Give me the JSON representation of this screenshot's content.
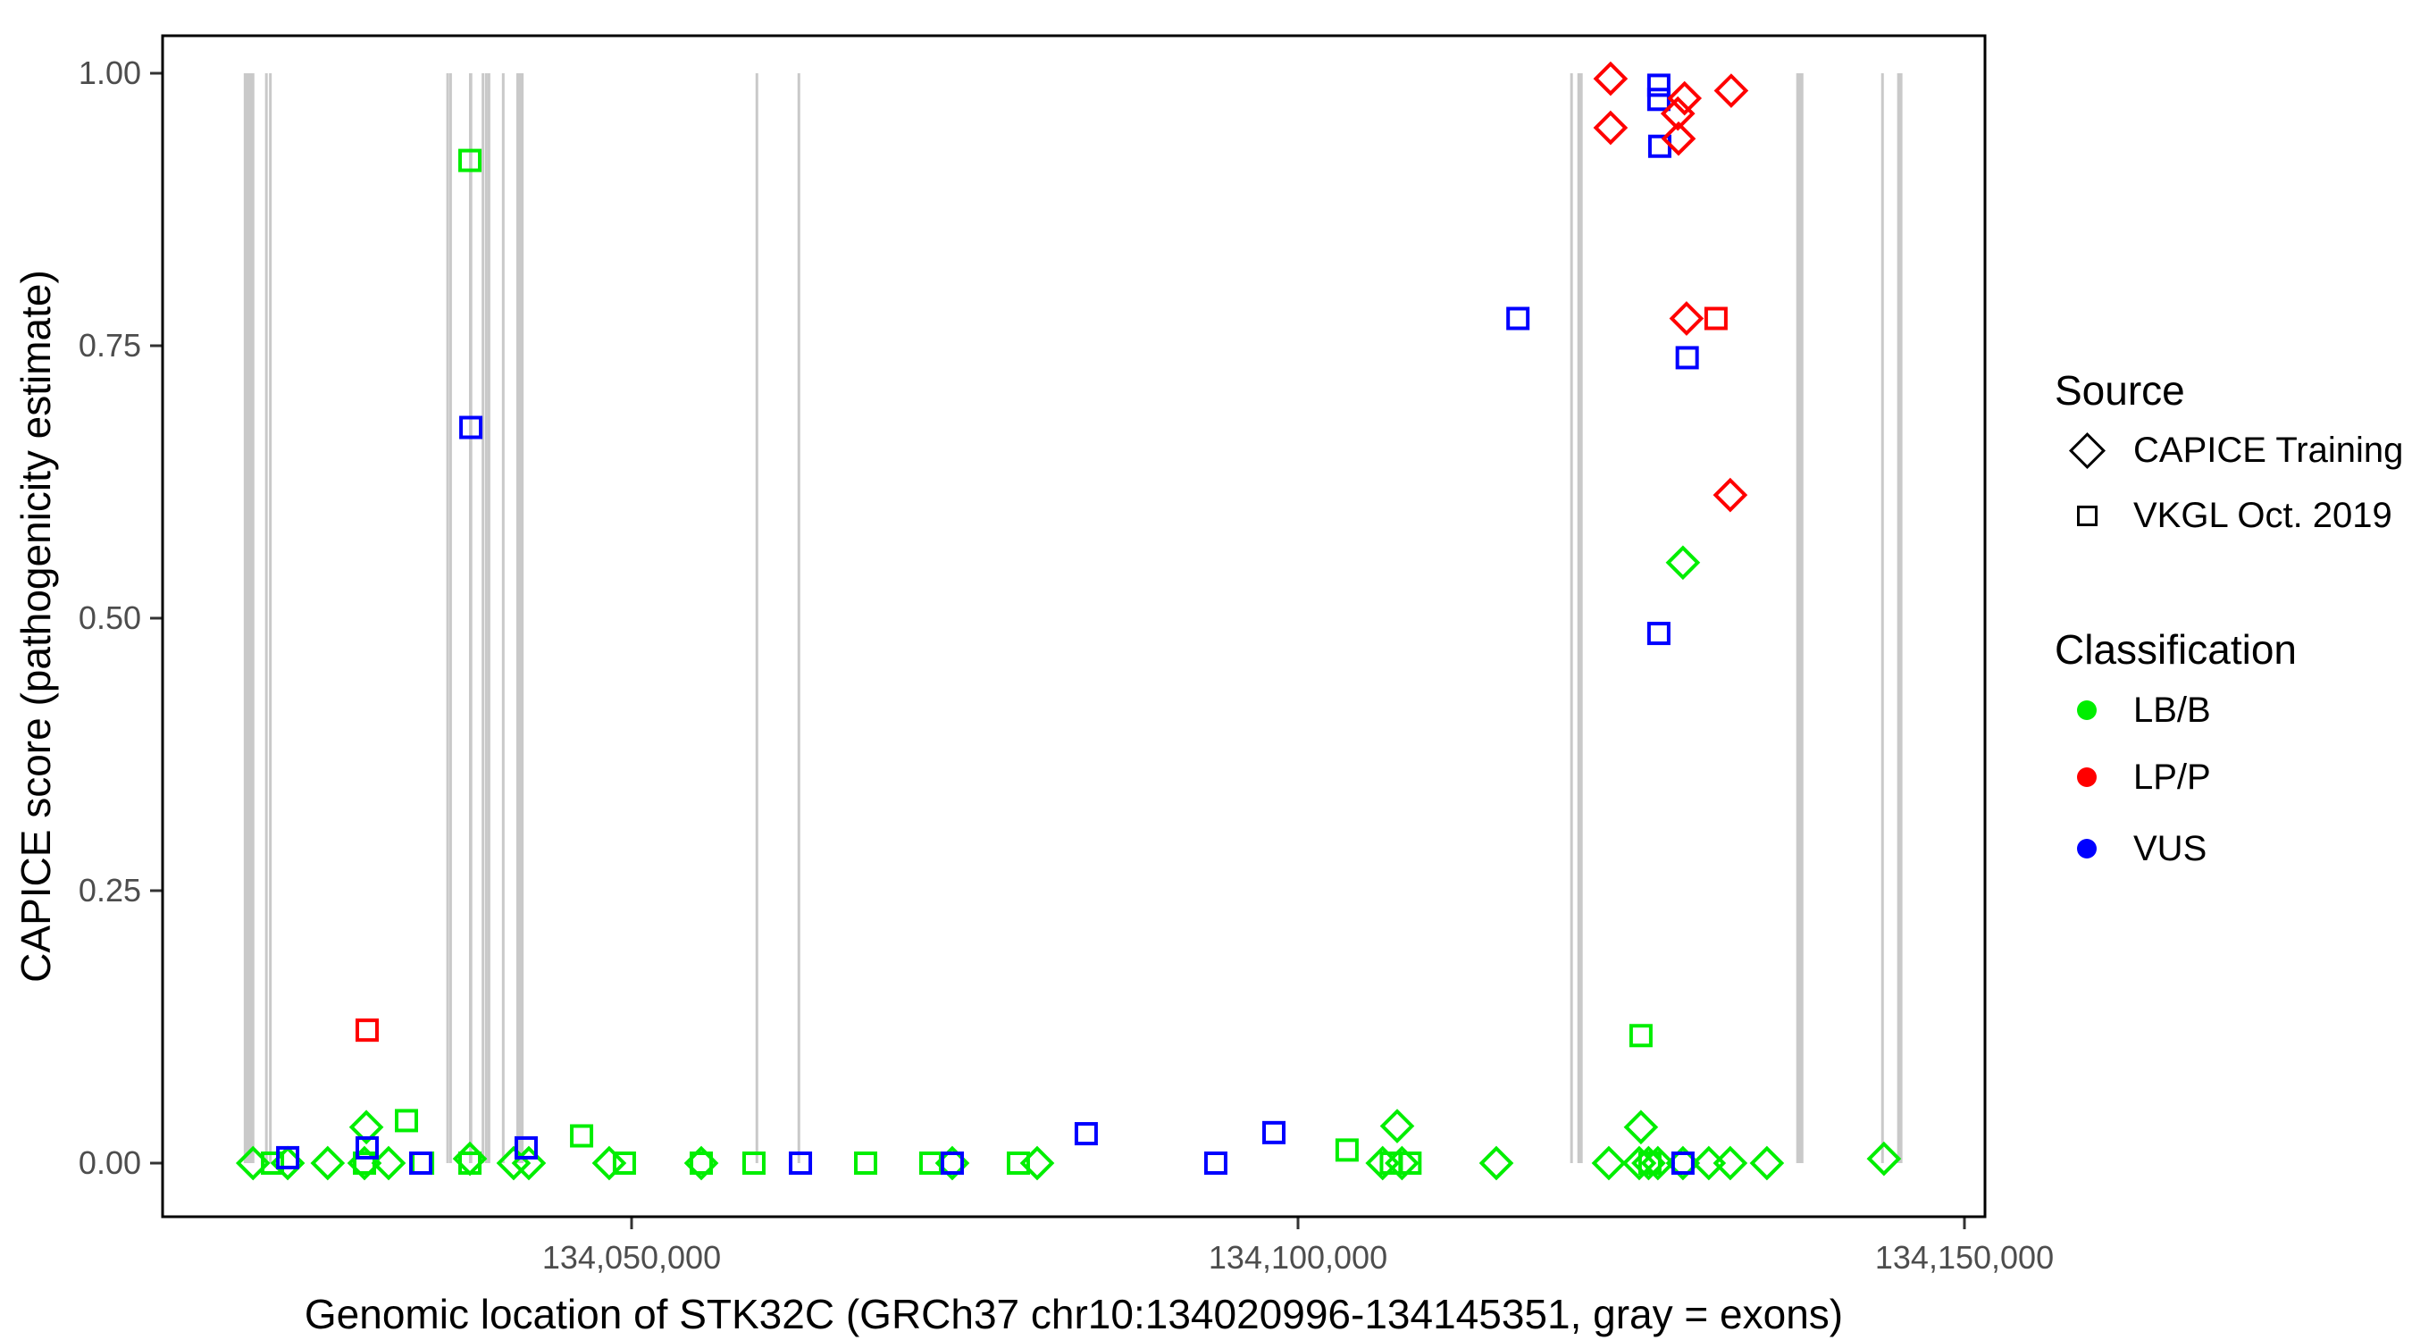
{
  "chart_data": {
    "type": "scatter",
    "title": "",
    "xlabel": "Genomic location of STK32C (GRCh37 chr10:134020996-134145351, gray = exons)",
    "ylabel": "CAPICE score (pathogenicity estimate)",
    "x_range": [
      134014800,
      134151550
    ],
    "y_range": [
      -0.05,
      1.035
    ],
    "grid": false,
    "x_ticks": [
      {
        "value": 134050000,
        "label": "134,050,000"
      },
      {
        "value": 134100000,
        "label": "134,100,000"
      },
      {
        "value": 134150000,
        "label": "134,150,000"
      }
    ],
    "y_ticks": [
      {
        "value": 0.0,
        "label": "0.00"
      },
      {
        "value": 0.25,
        "label": "0.25"
      },
      {
        "value": 0.5,
        "label": "0.50"
      },
      {
        "value": 0.75,
        "label": "0.75"
      },
      {
        "value": 1.0,
        "label": "1.00"
      }
    ],
    "colors": {
      "LB/B": "#00EE00",
      "LP/P": "#FF0000",
      "VUS": "#0000FF",
      "exon": "#C9C9C9",
      "axis_text": "#4D4D4D",
      "axis_line": "#000000"
    },
    "exons": [
      {
        "start": 134020900,
        "end": 134021700
      },
      {
        "start": 134022500,
        "end": 134022700
      },
      {
        "start": 134022800,
        "end": 134023000
      },
      {
        "start": 134036100,
        "end": 134036300
      },
      {
        "start": 134036320,
        "end": 134036520
      },
      {
        "start": 134037800,
        "end": 134038050
      },
      {
        "start": 134038750,
        "end": 134038900
      },
      {
        "start": 134039000,
        "end": 134039150
      },
      {
        "start": 134039200,
        "end": 134039350
      },
      {
        "start": 134040270,
        "end": 134040420
      },
      {
        "start": 134041350,
        "end": 134041900
      },
      {
        "start": 134059300,
        "end": 134059450
      },
      {
        "start": 134062450,
        "end": 134062600
      },
      {
        "start": 134120420,
        "end": 134120570
      },
      {
        "start": 134120960,
        "end": 134121360
      },
      {
        "start": 134137380,
        "end": 134137920
      },
      {
        "start": 134143750,
        "end": 134143950
      },
      {
        "start": 134144950,
        "end": 134145350
      }
    ],
    "points": [
      {
        "pos": 134037870,
        "score": 0.92,
        "classification": "LB/B",
        "source": "VKGL Oct. 2019"
      },
      {
        "pos": 134125730,
        "score": 0.117,
        "classification": "LB/B",
        "source": "VKGL Oct. 2019"
      },
      {
        "pos": 134023060,
        "score": 0.0,
        "classification": "LB/B",
        "source": "VKGL Oct. 2019"
      },
      {
        "pos": 134029960,
        "score": 0.0,
        "classification": "LB/B",
        "source": "VKGL Oct. 2019"
      },
      {
        "pos": 134033110,
        "score": 0.039,
        "classification": "LB/B",
        "source": "VKGL Oct. 2019"
      },
      {
        "pos": 134034320,
        "score": 0.0,
        "classification": "LB/B",
        "source": "VKGL Oct. 2019"
      },
      {
        "pos": 134037870,
        "score": 0.0,
        "classification": "LB/B",
        "source": "VKGL Oct. 2019"
      },
      {
        "pos": 134046250,
        "score": 0.025,
        "classification": "LB/B",
        "source": "VKGL Oct. 2019"
      },
      {
        "pos": 134049460,
        "score": 0.0,
        "classification": "LB/B",
        "source": "VKGL Oct. 2019"
      },
      {
        "pos": 134055230,
        "score": 0.0,
        "classification": "LB/B",
        "source": "VKGL Oct. 2019"
      },
      {
        "pos": 134059180,
        "score": 0.0,
        "classification": "LB/B",
        "source": "VKGL Oct. 2019"
      },
      {
        "pos": 134067560,
        "score": 0.0,
        "classification": "LB/B",
        "source": "VKGL Oct. 2019"
      },
      {
        "pos": 134072450,
        "score": 0.0,
        "classification": "LB/B",
        "source": "VKGL Oct. 2019"
      },
      {
        "pos": 134079020,
        "score": 0.0,
        "classification": "LB/B",
        "source": "VKGL Oct. 2019"
      },
      {
        "pos": 134103680,
        "score": 0.012,
        "classification": "LB/B",
        "source": "VKGL Oct. 2019"
      },
      {
        "pos": 134107000,
        "score": 0.0,
        "classification": "LB/B",
        "source": "VKGL Oct. 2019"
      },
      {
        "pos": 134108400,
        "score": 0.0,
        "classification": "LB/B",
        "source": "VKGL Oct. 2019"
      },
      {
        "pos": 134126400,
        "score": 0.0,
        "classification": "LB/B",
        "source": "VKGL Oct. 2019"
      },
      {
        "pos": 134021600,
        "score": 0.0,
        "classification": "LB/B",
        "source": "CAPICE Training"
      },
      {
        "pos": 134024200,
        "score": 0.0,
        "classification": "LB/B",
        "source": "CAPICE Training"
      },
      {
        "pos": 134027200,
        "score": 0.0,
        "classification": "LB/B",
        "source": "CAPICE Training"
      },
      {
        "pos": 134030100,
        "score": 0.033,
        "classification": "LB/B",
        "source": "CAPICE Training"
      },
      {
        "pos": 134029960,
        "score": 0.0,
        "classification": "LB/B",
        "source": "CAPICE Training"
      },
      {
        "pos": 134031770,
        "score": 0.0,
        "classification": "LB/B",
        "source": "CAPICE Training"
      },
      {
        "pos": 134037870,
        "score": 0.004,
        "classification": "LB/B",
        "source": "CAPICE Training"
      },
      {
        "pos": 134041150,
        "score": 0.0,
        "classification": "LB/B",
        "source": "CAPICE Training"
      },
      {
        "pos": 134042290,
        "score": 0.0,
        "classification": "LB/B",
        "source": "CAPICE Training"
      },
      {
        "pos": 134048320,
        "score": 0.0,
        "classification": "LB/B",
        "source": "CAPICE Training"
      },
      {
        "pos": 134055230,
        "score": 0.0,
        "classification": "LB/B",
        "source": "CAPICE Training"
      },
      {
        "pos": 134074060,
        "score": 0.0,
        "classification": "LB/B",
        "source": "CAPICE Training"
      },
      {
        "pos": 134080430,
        "score": 0.0,
        "classification": "LB/B",
        "source": "CAPICE Training"
      },
      {
        "pos": 134107440,
        "score": 0.034,
        "classification": "LB/B",
        "source": "CAPICE Training"
      },
      {
        "pos": 134106350,
        "score": 0.0,
        "classification": "LB/B",
        "source": "CAPICE Training"
      },
      {
        "pos": 134107800,
        "score": 0.0,
        "classification": "LB/B",
        "source": "CAPICE Training"
      },
      {
        "pos": 134114880,
        "score": 0.0,
        "classification": "LB/B",
        "source": "CAPICE Training"
      },
      {
        "pos": 134123320,
        "score": 0.0,
        "classification": "LB/B",
        "source": "CAPICE Training"
      },
      {
        "pos": 134125730,
        "score": 0.033,
        "classification": "LB/B",
        "source": "CAPICE Training"
      },
      {
        "pos": 134125600,
        "score": 0.0,
        "classification": "LB/B",
        "source": "CAPICE Training"
      },
      {
        "pos": 134126300,
        "score": 0.0,
        "classification": "LB/B",
        "source": "CAPICE Training"
      },
      {
        "pos": 134127000,
        "score": 0.0,
        "classification": "LB/B",
        "source": "CAPICE Training"
      },
      {
        "pos": 134128880,
        "score": 0.0,
        "classification": "LB/B",
        "source": "CAPICE Training"
      },
      {
        "pos": 134130820,
        "score": 0.0,
        "classification": "LB/B",
        "source": "CAPICE Training"
      },
      {
        "pos": 134132430,
        "score": 0.0,
        "classification": "LB/B",
        "source": "CAPICE Training"
      },
      {
        "pos": 134135180,
        "score": 0.0,
        "classification": "LB/B",
        "source": "CAPICE Training"
      },
      {
        "pos": 134143960,
        "score": 0.004,
        "classification": "LB/B",
        "source": "CAPICE Training"
      },
      {
        "pos": 134128880,
        "score": 0.551,
        "classification": "LB/B",
        "source": "CAPICE Training"
      },
      {
        "pos": 134127070,
        "score": 0.989,
        "classification": "VUS",
        "source": "VKGL Oct. 2019"
      },
      {
        "pos": 134127070,
        "score": 0.976,
        "classification": "VUS",
        "source": "VKGL Oct. 2019"
      },
      {
        "pos": 134127140,
        "score": 0.933,
        "classification": "VUS",
        "source": "VKGL Oct. 2019"
      },
      {
        "pos": 134116500,
        "score": 0.775,
        "classification": "VUS",
        "source": "VKGL Oct. 2019"
      },
      {
        "pos": 134129200,
        "score": 0.739,
        "classification": "VUS",
        "source": "VKGL Oct. 2019"
      },
      {
        "pos": 134127070,
        "score": 0.486,
        "classification": "VUS",
        "source": "VKGL Oct. 2019"
      },
      {
        "pos": 134037940,
        "score": 0.675,
        "classification": "VUS",
        "source": "VKGL Oct. 2019"
      },
      {
        "pos": 134024200,
        "score": 0.005,
        "classification": "VUS",
        "source": "VKGL Oct. 2019"
      },
      {
        "pos": 134030160,
        "score": 0.014,
        "classification": "VUS",
        "source": "VKGL Oct. 2019"
      },
      {
        "pos": 134034180,
        "score": 0.0,
        "classification": "VUS",
        "source": "VKGL Oct. 2019"
      },
      {
        "pos": 134042090,
        "score": 0.014,
        "classification": "VUS",
        "source": "VKGL Oct. 2019"
      },
      {
        "pos": 134062670,
        "score": 0.0,
        "classification": "VUS",
        "source": "VKGL Oct. 2019"
      },
      {
        "pos": 134074060,
        "score": 0.0,
        "classification": "VUS",
        "source": "VKGL Oct. 2019"
      },
      {
        "pos": 134084110,
        "score": 0.027,
        "classification": "VUS",
        "source": "VKGL Oct. 2019"
      },
      {
        "pos": 134093830,
        "score": 0.0,
        "classification": "VUS",
        "source": "VKGL Oct. 2019"
      },
      {
        "pos": 134098190,
        "score": 0.028,
        "classification": "VUS",
        "source": "VKGL Oct. 2019"
      },
      {
        "pos": 134128880,
        "score": 0.0,
        "classification": "VUS",
        "source": "VKGL Oct. 2019"
      },
      {
        "pos": 134123450,
        "score": 0.995,
        "classification": "LP/P",
        "source": "CAPICE Training"
      },
      {
        "pos": 134123450,
        "score": 0.95,
        "classification": "LP/P",
        "source": "CAPICE Training"
      },
      {
        "pos": 134129000,
        "score": 0.977,
        "classification": "LP/P",
        "source": "CAPICE Training"
      },
      {
        "pos": 134128500,
        "score": 0.963,
        "classification": "LP/P",
        "source": "CAPICE Training"
      },
      {
        "pos": 134128550,
        "score": 0.94,
        "classification": "LP/P",
        "source": "CAPICE Training"
      },
      {
        "pos": 134132500,
        "score": 0.984,
        "classification": "LP/P",
        "source": "CAPICE Training"
      },
      {
        "pos": 134129150,
        "score": 0.775,
        "classification": "LP/P",
        "source": "CAPICE Training"
      },
      {
        "pos": 134132430,
        "score": 0.613,
        "classification": "LP/P",
        "source": "CAPICE Training"
      },
      {
        "pos": 134131360,
        "score": 0.775,
        "classification": "LP/P",
        "source": "VKGL Oct. 2019"
      },
      {
        "pos": 134030160,
        "score": 0.122,
        "classification": "LP/P",
        "source": "VKGL Oct. 2019"
      }
    ]
  },
  "legend": {
    "source_title": "Source",
    "source_items": [
      {
        "label": "CAPICE Training",
        "shape": "diamond"
      },
      {
        "label": "VKGL Oct. 2019",
        "shape": "square"
      }
    ],
    "classification_title": "Classification",
    "classification_items": [
      {
        "label": "LB/B",
        "color": "#00EE00"
      },
      {
        "label": "LP/P",
        "color": "#FF0000"
      },
      {
        "label": "VUS",
        "color": "#0000FF"
      }
    ]
  }
}
